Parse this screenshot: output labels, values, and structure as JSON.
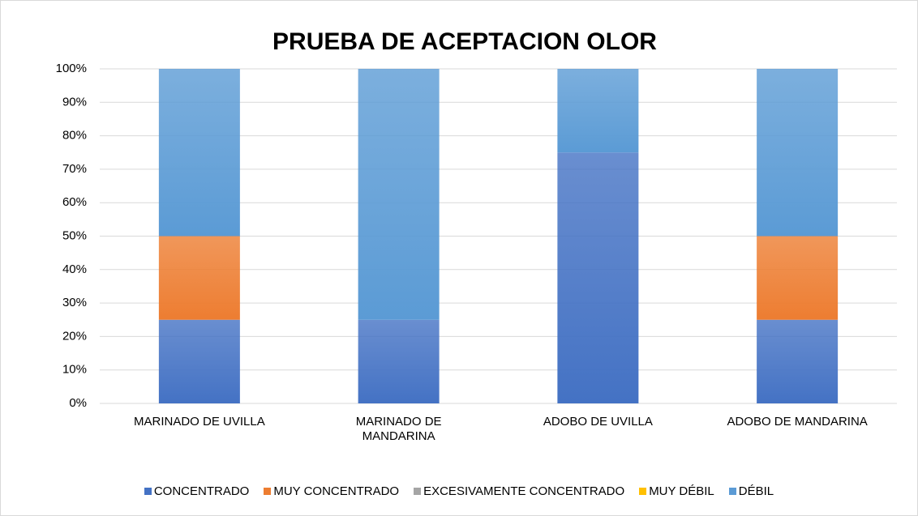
{
  "chart_data": {
    "type": "stacked_bar",
    "title": "PRUEBA DE ACEPTACION OLOR",
    "categories": [
      "MARINADO DE UVILLA",
      "MARINADO DE MANDARINA",
      "ADOBO DE UVILLA",
      "ADOBO DE MANDARINA"
    ],
    "series": [
      {
        "name": "CONCENTRADO",
        "color": "#4472c4",
        "values": [
          25,
          25,
          75,
          25
        ]
      },
      {
        "name": "MUY CONCENTRADO",
        "color": "#ed7d31",
        "values": [
          25,
          0,
          0,
          25
        ]
      },
      {
        "name": "EXCESIVAMENTE CONCENTRADO",
        "color": "#a5a5a5",
        "values": [
          0,
          0,
          0,
          0
        ]
      },
      {
        "name": "MUY DÉBIL",
        "color": "#ffc000",
        "values": [
          0,
          0,
          0,
          0
        ]
      },
      {
        "name": "DÉBIL",
        "color": "#5b9bd5",
        "values": [
          50,
          75,
          25,
          50
        ]
      }
    ],
    "ylim": [
      0,
      100
    ],
    "yticks": [
      {
        "value": 0,
        "label": "0%"
      },
      {
        "value": 10,
        "label": "10%"
      },
      {
        "value": 20,
        "label": "20%"
      },
      {
        "value": 30,
        "label": "30%"
      },
      {
        "value": 40,
        "label": "40%"
      },
      {
        "value": 50,
        "label": "50%"
      },
      {
        "value": 60,
        "label": "60%"
      },
      {
        "value": 70,
        "label": "70%"
      },
      {
        "value": 80,
        "label": "80%"
      },
      {
        "value": 90,
        "label": "90%"
      },
      {
        "value": 100,
        "label": "100%"
      }
    ],
    "grid": true,
    "legend": "bottom"
  }
}
